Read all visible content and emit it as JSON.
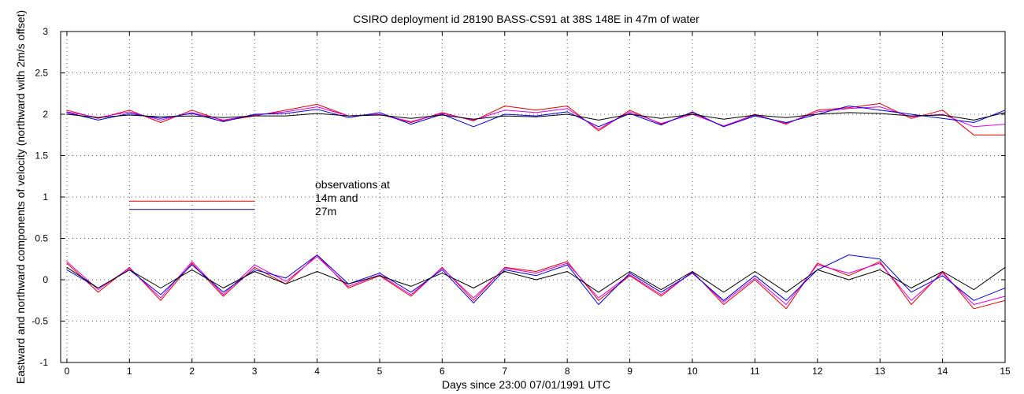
{
  "chart_data": {
    "type": "line",
    "title": "CSIRO deployment id 28190 BASS-CS91 at 38S 148E in 47m of water",
    "xlabel": "Days since 23:00 07/01/1991 UTC",
    "ylabel": "Eastward  and northward components of velocity  (northward with 2m/s offset)",
    "xlim": [
      -0.1,
      15
    ],
    "ylim": [
      -1,
      3
    ],
    "xticks": [
      0,
      1,
      2,
      3,
      4,
      5,
      6,
      7,
      8,
      9,
      10,
      11,
      12,
      13,
      14,
      15
    ],
    "yticks": [
      -1,
      -0.5,
      0,
      0.5,
      1,
      1.5,
      2,
      2.5,
      3
    ],
    "xtick_labels": [
      "0",
      "1",
      "2",
      "3",
      "4",
      "5",
      "6",
      "7",
      "8",
      "9",
      "10",
      "11",
      "12",
      "13",
      "14",
      "15"
    ],
    "ytick_labels": [
      "-1",
      "-0.5",
      "0",
      "0.5",
      "1",
      "1.5",
      "2",
      "2.5",
      "3"
    ],
    "grid": true,
    "legend": {
      "text": [
        "observations at",
        "14m and",
        "27m"
      ],
      "lines": [
        {
          "name": "14m",
          "color": "#e00000",
          "x": [
            1,
            3
          ],
          "y": [
            0.95,
            0.95
          ]
        },
        {
          "name": "27m",
          "color": "#000080",
          "x": [
            1,
            3
          ],
          "y": [
            0.85,
            0.85
          ]
        }
      ]
    },
    "series": [
      {
        "name": "northward_red",
        "color": "#e00000",
        "x": [
          0,
          0.5,
          1,
          1.5,
          2,
          2.5,
          3,
          3.5,
          4,
          4.5,
          5,
          5.5,
          6,
          6.5,
          7,
          7.5,
          8,
          8.5,
          9,
          9.5,
          10,
          10.5,
          11,
          11.5,
          12,
          12.5,
          13,
          13.5,
          14,
          14.5,
          15
        ],
        "values": [
          2.05,
          1.95,
          2.05,
          1.9,
          2.05,
          1.92,
          1.98,
          2.05,
          2.12,
          1.98,
          2.0,
          1.9,
          2.02,
          1.92,
          2.1,
          2.05,
          2.1,
          1.8,
          2.05,
          1.88,
          2.02,
          1.85,
          2.0,
          1.88,
          2.05,
          2.08,
          2.13,
          1.95,
          2.05,
          1.75,
          1.75
        ]
      },
      {
        "name": "northward_magenta",
        "color": "#e000e0",
        "x": [
          0,
          0.5,
          1,
          1.5,
          2,
          2.5,
          3,
          3.5,
          4,
          4.5,
          5,
          5.5,
          6,
          6.5,
          7,
          7.5,
          8,
          8.5,
          9,
          9.5,
          10,
          10.5,
          11,
          11.5,
          12,
          12.5,
          13,
          13.5,
          14,
          14.5,
          15
        ],
        "values": [
          2.03,
          1.96,
          2.03,
          1.93,
          2.02,
          1.93,
          1.99,
          2.03,
          2.09,
          1.98,
          2.0,
          1.91,
          2.01,
          1.93,
          2.05,
          2.02,
          2.07,
          1.82,
          2.03,
          1.89,
          2.0,
          1.86,
          1.99,
          1.89,
          2.03,
          2.07,
          2.09,
          1.97,
          2.0,
          1.85,
          1.88
        ]
      },
      {
        "name": "northward_blue",
        "color": "#0000e0",
        "x": [
          0,
          0.5,
          1,
          1.5,
          2,
          2.5,
          3,
          3.5,
          4,
          4.5,
          5,
          5.5,
          6,
          6.5,
          7,
          7.5,
          8,
          8.5,
          9,
          9.5,
          10,
          10.5,
          11,
          11.5,
          12,
          12.5,
          13,
          13.5,
          14,
          14.5,
          15
        ],
        "values": [
          2.02,
          1.93,
          2.01,
          1.95,
          2.01,
          1.91,
          2.0,
          2.01,
          2.06,
          1.96,
          2.02,
          1.88,
          2.0,
          1.85,
          2.0,
          1.98,
          2.03,
          1.85,
          2.01,
          1.87,
          2.03,
          1.85,
          1.98,
          1.9,
          2.0,
          2.1,
          2.05,
          2.0,
          1.95,
          1.9,
          2.05
        ]
      },
      {
        "name": "northward_black",
        "color": "#000000",
        "x": [
          0,
          0.5,
          1,
          1.5,
          2,
          2.5,
          3,
          3.5,
          4,
          4.5,
          5,
          5.5,
          6,
          6.5,
          7,
          7.5,
          8,
          8.5,
          9,
          9.5,
          10,
          10.5,
          11,
          11.5,
          12,
          12.5,
          13,
          13.5,
          14,
          14.5,
          15
        ],
        "values": [
          2.0,
          1.96,
          1.99,
          1.97,
          1.98,
          1.96,
          1.98,
          1.98,
          2.01,
          1.98,
          1.99,
          1.95,
          1.99,
          1.94,
          1.98,
          1.97,
          2.0,
          1.93,
          2.0,
          1.95,
          2.0,
          1.94,
          1.99,
          1.96,
          2.0,
          2.02,
          2.01,
          1.98,
          1.99,
          1.93,
          2.02
        ]
      },
      {
        "name": "eastward_red",
        "color": "#e00000",
        "x": [
          0,
          0.5,
          1,
          1.5,
          2,
          2.5,
          3,
          3.5,
          4,
          4.5,
          5,
          5.5,
          6,
          6.5,
          7,
          7.5,
          8,
          8.5,
          9,
          9.5,
          10,
          10.5,
          11,
          11.5,
          12,
          12.5,
          13,
          13.5,
          14,
          14.5,
          15
        ],
        "values": [
          0.2,
          -0.15,
          0.15,
          -0.25,
          0.2,
          -0.2,
          0.15,
          -0.05,
          0.3,
          -0.1,
          0.05,
          -0.2,
          0.15,
          -0.25,
          0.15,
          0.1,
          0.22,
          -0.25,
          0.05,
          -0.2,
          0.1,
          -0.3,
          0.0,
          -0.35,
          0.2,
          0.05,
          0.22,
          -0.3,
          0.1,
          -0.35,
          -0.25
        ]
      },
      {
        "name": "eastward_magenta",
        "color": "#e000e0",
        "x": [
          0,
          0.5,
          1,
          1.5,
          2,
          2.5,
          3,
          3.5,
          4,
          4.5,
          5,
          5.5,
          6,
          6.5,
          7,
          7.5,
          8,
          8.5,
          9,
          9.5,
          10,
          10.5,
          11,
          11.5,
          12,
          12.5,
          13,
          13.5,
          14,
          14.5,
          15
        ],
        "values": [
          0.22,
          -0.12,
          0.14,
          -0.22,
          0.22,
          -0.18,
          0.18,
          -0.02,
          0.28,
          -0.08,
          0.06,
          -0.18,
          0.14,
          -0.22,
          0.14,
          0.08,
          0.2,
          -0.22,
          0.06,
          -0.18,
          0.09,
          -0.27,
          0.02,
          -0.3,
          0.18,
          0.08,
          0.2,
          -0.25,
          0.08,
          -0.3,
          -0.2
        ]
      },
      {
        "name": "eastward_blue",
        "color": "#0000e0",
        "x": [
          0,
          0.5,
          1,
          1.5,
          2,
          2.5,
          3,
          3.5,
          4,
          4.5,
          5,
          5.5,
          6,
          6.5,
          7,
          7.5,
          8,
          8.5,
          9,
          9.5,
          10,
          10.5,
          11,
          11.5,
          12,
          12.5,
          13,
          13.5,
          14,
          14.5,
          15
        ],
        "values": [
          0.12,
          -0.1,
          0.12,
          -0.18,
          0.18,
          -0.15,
          0.12,
          0.02,
          0.3,
          -0.05,
          0.08,
          -0.15,
          0.12,
          -0.28,
          0.12,
          0.05,
          0.18,
          -0.3,
          0.08,
          -0.15,
          0.08,
          -0.25,
          0.05,
          -0.25,
          0.12,
          0.3,
          0.25,
          -0.15,
          0.05,
          -0.25,
          -0.1
        ]
      },
      {
        "name": "eastward_black",
        "color": "#000000",
        "x": [
          0,
          0.5,
          1,
          1.5,
          2,
          2.5,
          3,
          3.5,
          4,
          4.5,
          5,
          5.5,
          6,
          6.5,
          7,
          7.5,
          8,
          8.5,
          9,
          9.5,
          10,
          10.5,
          11,
          11.5,
          12,
          12.5,
          13,
          13.5,
          14,
          14.5,
          15
        ],
        "values": [
          0.15,
          -0.1,
          0.12,
          -0.1,
          0.12,
          -0.1,
          0.1,
          -0.05,
          0.1,
          -0.05,
          0.05,
          -0.08,
          0.08,
          -0.1,
          0.1,
          0.0,
          0.1,
          -0.15,
          0.1,
          -0.12,
          0.1,
          -0.15,
          0.1,
          -0.15,
          0.12,
          0.0,
          0.12,
          -0.1,
          0.1,
          -0.12,
          0.15
        ]
      }
    ]
  }
}
